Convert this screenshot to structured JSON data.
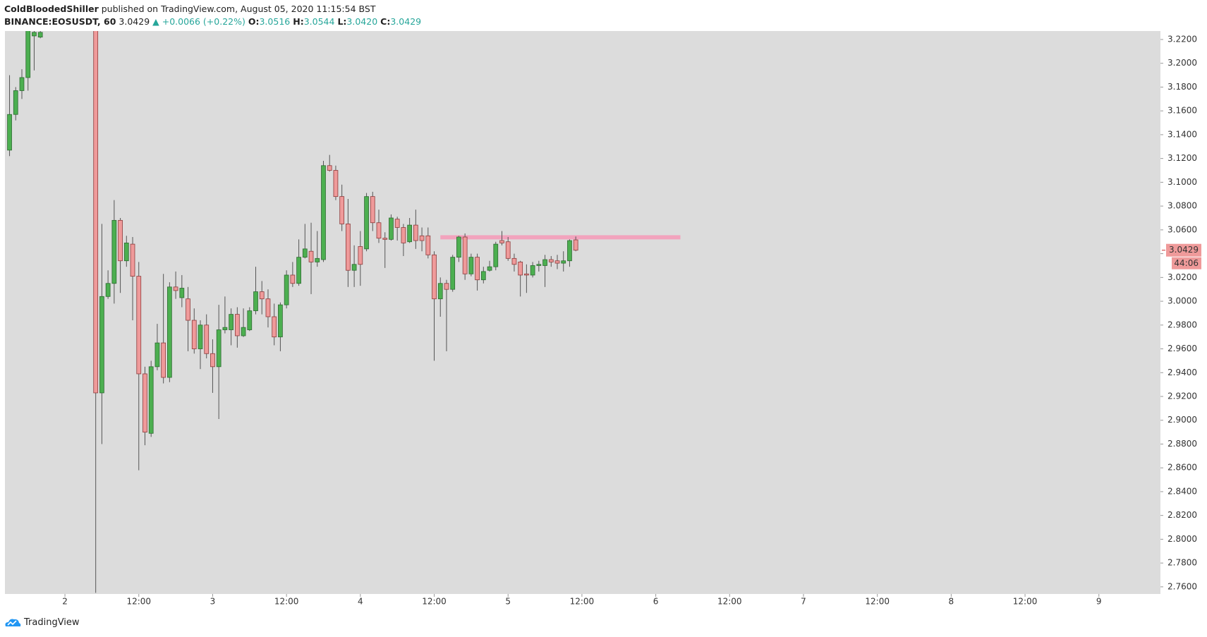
{
  "header": {
    "author": "ColdBloodedShiller",
    "published": "published on TradingView.com, August 05, 2020 11:15:54 BST",
    "symbol": "BINANCE:EOSUSDT, 60",
    "last": "3.0429",
    "change": "▲ +0.0066 (+0.22%)",
    "ohlc": [
      {
        "label": "O:",
        "value": "3.0516"
      },
      {
        "label": "H:",
        "value": "3.0544"
      },
      {
        "label": "L:",
        "value": "3.0420"
      },
      {
        "label": "C:",
        "value": "3.0429"
      }
    ]
  },
  "chart_data": {
    "type": "candlestick",
    "x": [
      -9,
      -8,
      -7,
      -6,
      -5,
      -4,
      5,
      6,
      7,
      8,
      9,
      10,
      11,
      12,
      13,
      14,
      15,
      16,
      17,
      18,
      19,
      20,
      21,
      22,
      23,
      24,
      25,
      26,
      27,
      28,
      29,
      30,
      31,
      32,
      33,
      34,
      35,
      36,
      37,
      38,
      39,
      40,
      41,
      42,
      43,
      44,
      45,
      46,
      47,
      48,
      49,
      50,
      51,
      52,
      53,
      54,
      55,
      56,
      57,
      58,
      59,
      60,
      61,
      62,
      63,
      64,
      65,
      66,
      67,
      68,
      69,
      70,
      71,
      72,
      73,
      74,
      75,
      76,
      77,
      78,
      79,
      80,
      81,
      82,
      83
    ],
    "open": [
      3.127,
      3.157,
      3.177,
      3.188,
      3.223,
      3.222,
      3.24,
      2.923,
      3.004,
      3.015,
      3.068,
      3.034,
      3.048,
      3.021,
      2.939,
      2.889,
      2.945,
      2.965,
      2.936,
      3.012,
      3.003,
      3.002,
      2.984,
      2.96,
      2.98,
      2.956,
      2.945,
      2.976,
      2.976,
      2.989,
      2.971,
      2.976,
      2.992,
      3.008,
      3.002,
      2.987,
      2.97,
      2.997,
      3.022,
      3.015,
      3.037,
      3.042,
      3.033,
      3.035,
      3.114,
      3.11,
      3.088,
      3.065,
      3.026,
      3.046,
      3.044,
      3.088,
      3.066,
      3.053,
      3.052,
      3.069,
      3.062,
      3.05,
      3.064,
      3.055,
      3.055,
      3.039,
      3.002,
      3.015,
      3.01,
      3.037,
      3.054,
      3.023,
      3.037,
      3.018,
      3.026,
      3.029,
      3.051,
      3.05,
      3.036,
      3.033,
      3.023,
      3.022,
      3.03,
      3.03,
      3.035,
      3.034,
      3.032,
      3.034,
      3.0516
    ],
    "high": [
      3.19,
      3.18,
      3.195,
      3.24,
      3.23,
      3.23,
      3.26,
      3.065,
      3.026,
      3.085,
      3.07,
      3.055,
      3.054,
      3.033,
      2.945,
      2.95,
      2.981,
      3.023,
      3.016,
      3.025,
      3.022,
      3.012,
      2.994,
      2.984,
      2.989,
      2.968,
      2.997,
      3.004,
      2.994,
      2.995,
      2.994,
      2.995,
      3.029,
      3.017,
      3.01,
      2.998,
      2.999,
      3.026,
      3.033,
      3.052,
      3.065,
      3.066,
      3.059,
      3.118,
      3.123,
      3.114,
      3.098,
      3.086,
      3.047,
      3.059,
      3.091,
      3.092,
      3.077,
      3.058,
      3.073,
      3.071,
      3.065,
      3.07,
      3.077,
      3.062,
      3.062,
      3.042,
      3.02,
      3.018,
      3.039,
      3.055,
      3.057,
      3.04,
      3.04,
      3.029,
      3.034,
      3.05,
      3.059,
      3.054,
      3.04,
      3.034,
      3.031,
      3.033,
      3.034,
      3.039,
      3.038,
      3.039,
      3.042,
      3.052,
      3.0544
    ],
    "low": [
      3.122,
      3.152,
      3.17,
      3.177,
      3.194,
      3.221,
      2.755,
      2.88,
      3.002,
      2.998,
      3.007,
      3.029,
      2.984,
      2.858,
      2.879,
      2.886,
      2.942,
      2.931,
      2.932,
      3.002,
      2.995,
      2.958,
      2.956,
      2.943,
      2.952,
      2.923,
      2.901,
      2.973,
      2.963,
      2.961,
      2.97,
      2.975,
      2.989,
      2.989,
      2.978,
      2.963,
      2.958,
      2.994,
      3.012,
      3.013,
      3.036,
      3.006,
      3.029,
      3.033,
      3.109,
      3.085,
      3.059,
      3.012,
      3.012,
      3.013,
      3.042,
      3.059,
      3.049,
      3.028,
      3.051,
      3.051,
      3.038,
      3.049,
      3.044,
      3.042,
      3.036,
      2.95,
      2.987,
      2.958,
      3.008,
      3.033,
      3.018,
      3.021,
      3.009,
      3.015,
      3.025,
      3.026,
      3.047,
      3.034,
      3.025,
      3.004,
      3.007,
      3.02,
      3.025,
      3.012,
      3.029,
      3.027,
      3.025,
      3.029,
      3.042
    ],
    "close": [
      3.157,
      3.177,
      3.188,
      3.232,
      3.226,
      3.226,
      2.923,
      3.004,
      3.015,
      3.068,
      3.034,
      3.049,
      3.021,
      2.939,
      2.89,
      2.945,
      2.965,
      2.936,
      3.012,
      3.009,
      3.011,
      2.984,
      2.96,
      2.98,
      2.956,
      2.945,
      2.976,
      2.978,
      2.989,
      2.971,
      2.978,
      2.992,
      3.008,
      3.002,
      2.987,
      2.97,
      2.997,
      3.022,
      3.015,
      3.037,
      3.044,
      3.033,
      3.036,
      3.114,
      3.11,
      3.088,
      3.065,
      3.026,
      3.031,
      3.031,
      3.088,
      3.066,
      3.053,
      3.052,
      3.07,
      3.062,
      3.049,
      3.064,
      3.051,
      3.051,
      3.039,
      3.002,
      3.015,
      3.01,
      3.037,
      3.054,
      3.023,
      3.037,
      3.018,
      3.025,
      3.029,
      3.048,
      3.049,
      3.036,
      3.031,
      3.022,
      3.022,
      3.03,
      3.031,
      3.035,
      3.033,
      3.032,
      3.034,
      3.051,
      3.0429
    ],
    "up_color": "#4caf50",
    "up_border": "#2e6b31",
    "down_color": "#ef9a9a",
    "down_border": "#8e3b3b",
    "wick_color": "#555555",
    "zone": {
      "x": [
        61,
        100
      ],
      "y": [
        3.052,
        3.0555
      ],
      "color": "#f2a3bd"
    },
    "countdown": "44:06",
    "xlim": [
      -9.75,
      178
    ],
    "xticks": [
      {
        "value": 0,
        "label": "2"
      },
      {
        "value": 12,
        "label": "12:00"
      },
      {
        "value": 24,
        "label": "3"
      },
      {
        "value": 36,
        "label": "12:00"
      },
      {
        "value": 48,
        "label": "4"
      },
      {
        "value": 60,
        "label": "12:00"
      },
      {
        "value": 72,
        "label": "5"
      },
      {
        "value": 84,
        "label": "12:00"
      },
      {
        "value": 96,
        "label": "6"
      },
      {
        "value": 108,
        "label": "12:00"
      },
      {
        "value": 120,
        "label": "7"
      },
      {
        "value": 132,
        "label": "12:00"
      },
      {
        "value": 144,
        "label": "8"
      },
      {
        "value": 156,
        "label": "12:00"
      },
      {
        "value": 168,
        "label": "9"
      }
    ],
    "ylim": [
      2.754,
      3.2271
    ],
    "yticks": [
      {
        "value": 3.22,
        "label": "3.2200"
      },
      {
        "value": 3.2,
        "label": "3.2000"
      },
      {
        "value": 3.18,
        "label": "3.1800"
      },
      {
        "value": 3.16,
        "label": "3.1600"
      },
      {
        "value": 3.14,
        "label": "3.1400"
      },
      {
        "value": 3.12,
        "label": "3.1200"
      },
      {
        "value": 3.1,
        "label": "3.1000"
      },
      {
        "value": 3.08,
        "label": "3.0800"
      },
      {
        "value": 3.06,
        "label": "3.0600"
      },
      {
        "value": 3.04,
        "label": "3.0400"
      },
      {
        "value": 3.02,
        "label": "3.0200"
      },
      {
        "value": 3.0,
        "label": "3.0000"
      },
      {
        "value": 2.98,
        "label": "2.9800"
      },
      {
        "value": 2.96,
        "label": "2.9600"
      },
      {
        "value": 2.94,
        "label": "2.9400"
      },
      {
        "value": 2.92,
        "label": "2.9200"
      },
      {
        "value": 2.9,
        "label": "2.9000"
      },
      {
        "value": 2.88,
        "label": "2.8800"
      },
      {
        "value": 2.86,
        "label": "2.8600"
      },
      {
        "value": 2.84,
        "label": "2.8400"
      },
      {
        "value": 2.82,
        "label": "2.8200"
      },
      {
        "value": 2.8,
        "label": "2.8000"
      },
      {
        "value": 2.78,
        "label": "2.7800"
      },
      {
        "value": 2.76,
        "label": "2.7600"
      }
    ]
  },
  "footer": {
    "brand": "TradingView"
  }
}
